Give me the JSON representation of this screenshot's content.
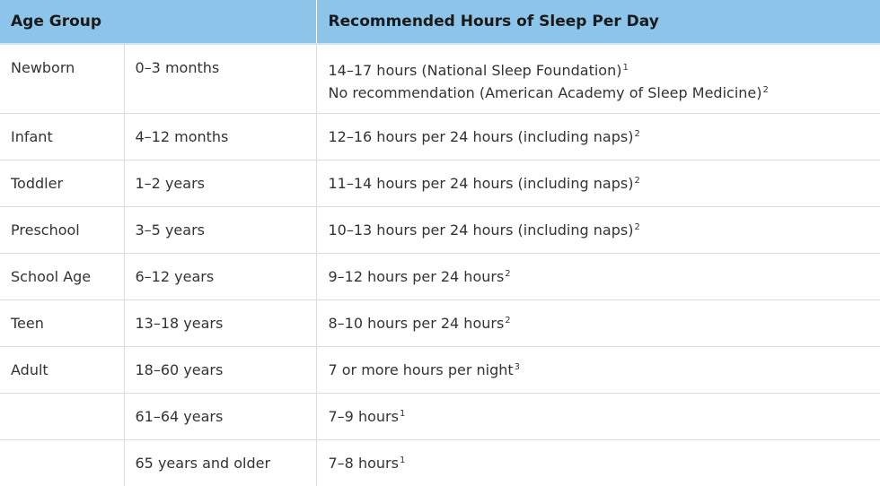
{
  "header": {
    "age_group": "Age Group",
    "recommended": "Recommended Hours of Sleep Per Day"
  },
  "rows": [
    {
      "group": "Newborn",
      "age": "0–3 months",
      "lines": [
        {
          "text": "14–17 hours (National Sleep Foundation)",
          "ref": "1"
        },
        {
          "text": "No recommendation (American Academy of Sleep Medicine)",
          "ref": "2"
        }
      ]
    },
    {
      "group": "Infant",
      "age": "4–12 months",
      "lines": [
        {
          "text": "12–16 hours per 24 hours (including naps)",
          "ref": "2"
        }
      ]
    },
    {
      "group": "Toddler",
      "age": "1–2 years",
      "lines": [
        {
          "text": "11–14 hours per 24 hours (including naps)",
          "ref": "2"
        }
      ]
    },
    {
      "group": "Preschool",
      "age": "3–5 years",
      "lines": [
        {
          "text": "10–13 hours per 24 hours (including naps)",
          "ref": "2"
        }
      ]
    },
    {
      "group": "School Age",
      "age": "6–12 years",
      "lines": [
        {
          "text": "9–12 hours per 24 hours",
          "ref": "2"
        }
      ]
    },
    {
      "group": "Teen",
      "age": "13–18 years",
      "lines": [
        {
          "text": "8–10 hours per 24 hours",
          "ref": "2"
        }
      ]
    },
    {
      "group": "Adult",
      "age": "18–60 years",
      "lines": [
        {
          "text": "7 or more hours per night",
          "ref": "3"
        }
      ]
    },
    {
      "group": "",
      "age": "61–64 years",
      "lines": [
        {
          "text": "7–9 hours",
          "ref": "1"
        }
      ]
    },
    {
      "group": "",
      "age": "65 years and older",
      "lines": [
        {
          "text": "7–8 hours",
          "ref": "1"
        }
      ]
    }
  ],
  "colors": {
    "header_bg": "#8cc4ea",
    "border": "#dcdcdc",
    "text": "#333333"
  }
}
